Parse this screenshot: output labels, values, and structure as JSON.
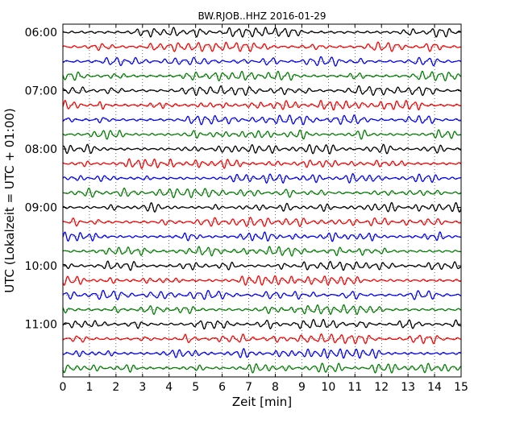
{
  "chart_data": {
    "type": "line",
    "title": "BW.RJOB..HHZ 2016-01-29",
    "xlabel": "Zeit  [min]",
    "ylabel": "UTC (Lokalzeit = UTC + 01:00)",
    "xlim": [
      0,
      15
    ],
    "x_ticks": [
      "0",
      "1",
      "2",
      "3",
      "4",
      "5",
      "6",
      "7",
      "8",
      "9",
      "10",
      "11",
      "12",
      "13",
      "14",
      "15"
    ],
    "y_ticks": [
      "06:00",
      "07:00",
      "08:00",
      "09:00",
      "10:00",
      "11:00"
    ],
    "grid": "dotted",
    "line_colors": [
      "#000000",
      "#ff0000",
      "#0000ff",
      "#008000"
    ],
    "traces_per_hour": 4,
    "trace_count": 24
  }
}
